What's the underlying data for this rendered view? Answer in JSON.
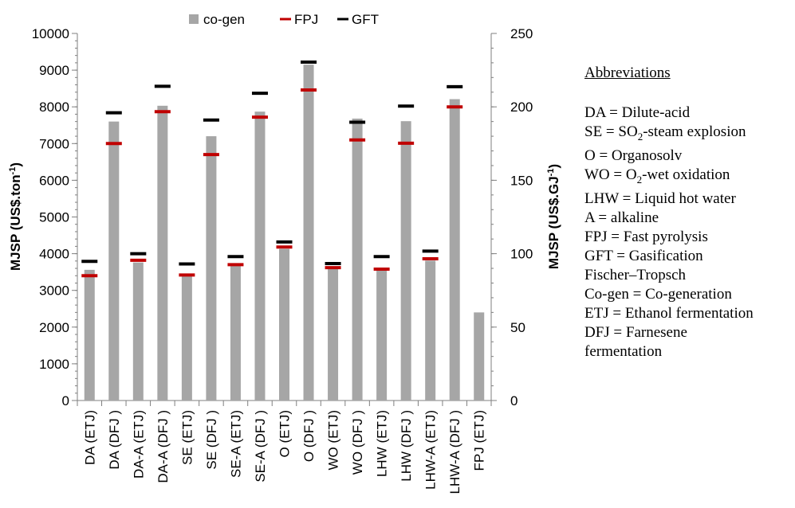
{
  "chart_data": {
    "type": "bar",
    "categories": [
      "DA (ETJ)",
      "DA (DFJ )",
      "DA-A (ETJ)",
      "DA-A (DFJ )",
      "SE (ETJ)",
      "SE (DFJ )",
      "SE-A (ETJ)",
      "SE-A (DFJ )",
      "O (ETJ)",
      "O (DFJ )",
      "WO (ETJ)",
      "WO (DFJ )",
      "LHW (ETJ)",
      "LHW (DFJ )",
      "LHW-A (ETJ)",
      "LHW-A (DFJ )",
      "FPJ (ETJ)"
    ],
    "series": [
      {
        "name": "co-gen",
        "marker": "bar",
        "color": "#a6a6a6",
        "axis": "left",
        "values": [
          3560,
          7600,
          3760,
          8030,
          3420,
          7200,
          3700,
          7870,
          4130,
          9150,
          3610,
          7680,
          3560,
          7610,
          3810,
          8210,
          2400
        ]
      },
      {
        "name": "FPJ",
        "marker": "dash",
        "color": "#c00000",
        "axis": "left",
        "values": [
          3400,
          7000,
          3820,
          7870,
          3420,
          6700,
          3700,
          7720,
          4180,
          8460,
          3620,
          7100,
          3580,
          7010,
          3860,
          8000,
          null
        ]
      },
      {
        "name": "GFT",
        "marker": "dash",
        "color": "#000000",
        "axis": "left",
        "values": [
          3790,
          7840,
          4000,
          8560,
          3720,
          7640,
          3920,
          8370,
          4320,
          9220,
          3730,
          7580,
          3920,
          8020,
          4070,
          8550,
          null
        ]
      }
    ],
    "ylabel": "MJSP (US$.ton-1)",
    "ylim": [
      0,
      10000
    ],
    "yticks": [
      "0",
      "1000",
      "2000",
      "3000",
      "4000",
      "5000",
      "6000",
      "7000",
      "8000",
      "9000",
      "10000"
    ],
    "y2label": "MJSP (US$.GJ-1)",
    "y2lim": [
      0,
      250
    ],
    "y2ticks": [
      "0",
      "50",
      "100",
      "150",
      "200",
      "250"
    ],
    "legend_position": "top",
    "grid": false
  },
  "abbreviations": {
    "title": "Abbreviations",
    "lines": [
      "DA = Dilute-acid",
      "SE = SO2-steam explosion",
      "O = Organosolv",
      "WO = O2-wet oxidation",
      "LHW = Liquid hot water",
      "A = alkaline",
      "FPJ = Fast pyrolysis",
      "GFT = Gasification",
      "Fischer–Tropsch",
      "Co-gen = Co-generation",
      "ETJ = Ethanol fermentation",
      "DFJ = Farnesene",
      "fermentation"
    ]
  }
}
